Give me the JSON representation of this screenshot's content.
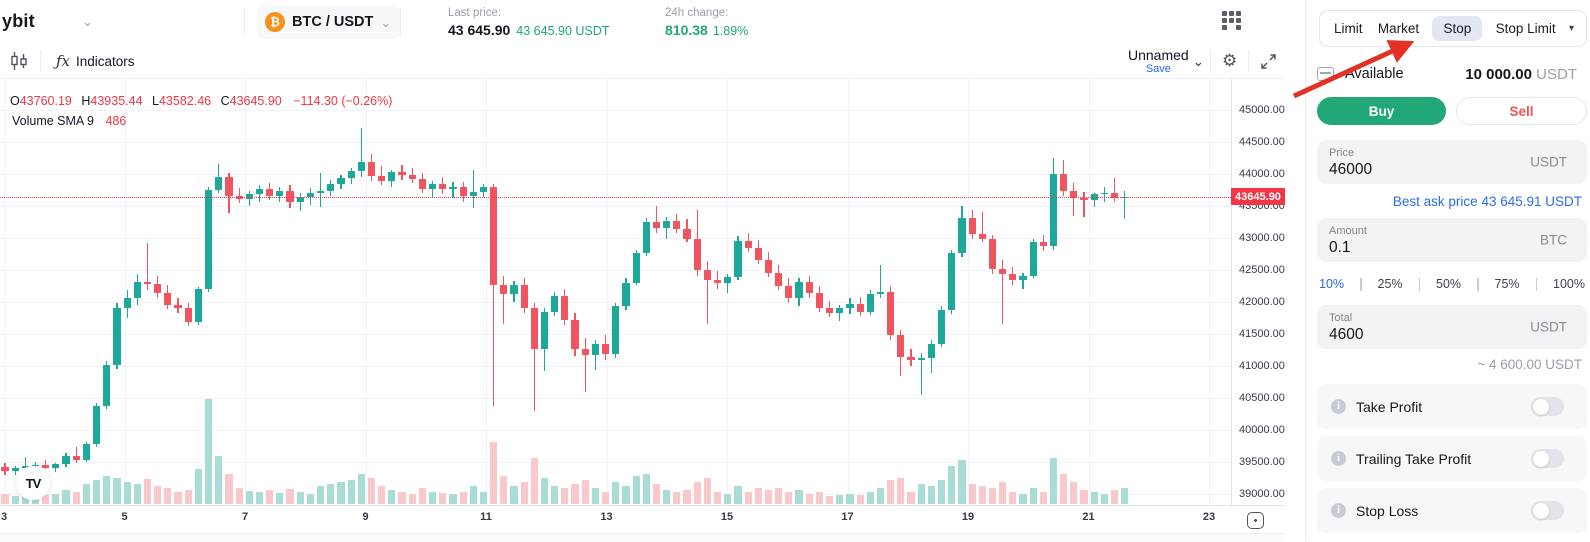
{
  "colors": {
    "candle_up": "#1CA99A",
    "candle_down": "#F0545E",
    "vol_up": "#A8DCD5",
    "vol_down": "#F8C8CB",
    "accent_red": "#F23645",
    "buy_green": "#21A876",
    "sell_red": "#EF5454",
    "link_blue": "#2D6BE4",
    "brand_orange": "#F7931A",
    "arrow_red": "#E43025"
  },
  "icons": {
    "btc": "₿",
    "chevron_down": "⌄",
    "caret_down": "▾",
    "gear": "⚙",
    "fx": "ƒx",
    "info": "i",
    "tv": "TV"
  },
  "top_bar": {
    "logo_text": "ybit",
    "pair": "BTC / USDT",
    "last_price_label": "Last price:",
    "last_price": "43 645.90",
    "last_price_usdt": "43 645.90 USDT",
    "change_label": "24h change:",
    "change_value": "810.38",
    "change_pct": "1.89%"
  },
  "chart": {
    "toolbar": {
      "indicators": "Indicators",
      "layout_name": "Unnamed",
      "save": "Save"
    },
    "legend": {
      "o_key": "O",
      "o_val": "43760.19",
      "h_key": "H",
      "h_val": "43935.44",
      "l_key": "L",
      "l_val": "43582.46",
      "c_key": "C",
      "c_val": "43645.90",
      "chg": "−114.30 (−0.26%)"
    },
    "volume_legend": {
      "label": "Volume SMA 9",
      "value": "486"
    },
    "price_tag": "43645.90",
    "y_ticks": [
      "45000.00",
      "44500.00",
      "44000.00",
      "43500.00",
      "43000.00",
      "42500.00",
      "42000.00",
      "41500.00",
      "41000.00",
      "40500.00",
      "40000.00",
      "39500.00",
      "39000.00"
    ],
    "x_ticks": [
      "3",
      "5",
      "7",
      "9",
      "11",
      "13",
      "15",
      "17",
      "19",
      "21",
      "23"
    ],
    "chart_data": {
      "type": "candlestick",
      "symbol": "BTC/USDT",
      "last_price": 43645.9,
      "y_range": [
        39000,
        45000
      ],
      "price_step": 500,
      "x_tick_days": [
        3,
        5,
        7,
        9,
        11,
        13,
        15,
        17,
        19,
        21,
        23
      ],
      "candle_format": [
        "open",
        "high",
        "low",
        "close",
        "volume_px"
      ],
      "candles": [
        [
          39420,
          39490,
          39300,
          39360,
          10
        ],
        [
          39360,
          39440,
          39300,
          39410,
          8
        ],
        [
          39410,
          39580,
          39340,
          39430,
          9
        ],
        [
          39430,
          39500,
          39360,
          39460,
          8
        ],
        [
          39460,
          39530,
          39390,
          39410,
          9
        ],
        [
          39410,
          39490,
          39340,
          39470,
          10
        ],
        [
          39470,
          39640,
          39420,
          39600,
          14
        ],
        [
          39600,
          39730,
          39480,
          39530,
          12
        ],
        [
          39530,
          39810,
          39500,
          39780,
          20
        ],
        [
          39780,
          40420,
          39740,
          40380,
          24
        ],
        [
          40380,
          41080,
          40330,
          41020,
          28
        ],
        [
          41020,
          41980,
          40960,
          41900,
          26
        ],
        [
          41900,
          42180,
          41750,
          42060,
          22
        ],
        [
          42060,
          42440,
          41950,
          42310,
          20
        ],
        [
          42310,
          42920,
          42180,
          42280,
          25
        ],
        [
          42280,
          42400,
          42060,
          42140,
          18
        ],
        [
          42140,
          42260,
          41890,
          41950,
          16
        ],
        [
          41950,
          42060,
          41830,
          41900,
          12
        ],
        [
          41900,
          41990,
          41630,
          41680,
          14
        ],
        [
          41680,
          42240,
          41640,
          42210,
          35
        ],
        [
          42210,
          43790,
          42160,
          43750,
          105
        ],
        [
          43750,
          44160,
          43700,
          43950,
          48
        ],
        [
          43950,
          44010,
          43390,
          43660,
          30
        ],
        [
          43660,
          43780,
          43540,
          43610,
          16
        ],
        [
          43610,
          43730,
          43500,
          43690,
          13
        ],
        [
          43690,
          43830,
          43570,
          43760,
          12
        ],
        [
          43760,
          43860,
          43600,
          43660,
          14
        ],
        [
          43660,
          43800,
          43560,
          43730,
          11
        ],
        [
          43730,
          43830,
          43470,
          43560,
          15
        ],
        [
          43560,
          43700,
          43420,
          43640,
          12
        ],
        [
          43640,
          43780,
          43520,
          43700,
          10
        ],
        [
          43700,
          44010,
          43490,
          43740,
          18
        ],
        [
          43740,
          43900,
          43650,
          43850,
          20
        ],
        [
          43850,
          43990,
          43760,
          43940,
          22
        ],
        [
          43940,
          44100,
          43850,
          44050,
          24
        ],
        [
          44050,
          44720,
          43950,
          44190,
          30
        ],
        [
          44190,
          44310,
          43890,
          43970,
          26
        ],
        [
          43970,
          44120,
          43830,
          43890,
          18
        ],
        [
          43890,
          44060,
          43800,
          44030,
          14
        ],
        [
          44030,
          44140,
          43910,
          43980,
          12
        ],
        [
          43980,
          44090,
          43860,
          43920,
          10
        ],
        [
          43920,
          44010,
          43700,
          43770,
          16
        ],
        [
          43770,
          43890,
          43640,
          43850,
          12
        ],
        [
          43850,
          43950,
          43690,
          43760,
          11
        ],
        [
          43760,
          43870,
          43620,
          43790,
          10
        ],
        [
          43790,
          43880,
          43560,
          43650,
          12
        ],
        [
          43650,
          44060,
          43470,
          43720,
          18
        ],
        [
          43720,
          43840,
          43640,
          43800,
          12
        ],
        [
          43800,
          43840,
          40380,
          42260,
          62
        ],
        [
          42260,
          42400,
          41660,
          42130,
          28
        ],
        [
          42130,
          42330,
          42000,
          42270,
          18
        ],
        [
          42270,
          42380,
          41830,
          41910,
          22
        ],
        [
          41910,
          41990,
          40300,
          41270,
          46
        ],
        [
          41270,
          41900,
          40920,
          41840,
          26
        ],
        [
          41840,
          42160,
          41780,
          42090,
          18
        ],
        [
          42090,
          42200,
          41640,
          41720,
          16
        ],
        [
          41720,
          41830,
          41160,
          41260,
          20
        ],
        [
          41260,
          41430,
          40590,
          41170,
          24
        ],
        [
          41170,
          41400,
          40940,
          41340,
          16
        ],
        [
          41340,
          41490,
          41100,
          41180,
          12
        ],
        [
          41180,
          41990,
          41130,
          41930,
          22
        ],
        [
          41930,
          42380,
          41880,
          42300,
          18
        ],
        [
          42300,
          42820,
          42260,
          42760,
          28
        ],
        [
          42760,
          43310,
          42720,
          43250,
          30
        ],
        [
          43250,
          43500,
          43080,
          43160,
          20
        ],
        [
          43160,
          43330,
          42990,
          43260,
          14
        ],
        [
          43260,
          43380,
          43080,
          43140,
          12
        ],
        [
          43140,
          43290,
          42930,
          42990,
          14
        ],
        [
          42990,
          43440,
          42400,
          42500,
          22
        ],
        [
          42500,
          42640,
          41650,
          42350,
          26
        ],
        [
          42350,
          42480,
          42200,
          42300,
          12
        ],
        [
          42300,
          42440,
          42140,
          42390,
          10
        ],
        [
          42390,
          43030,
          42340,
          42950,
          18
        ],
        [
          42950,
          43080,
          42780,
          42850,
          12
        ],
        [
          42850,
          42970,
          42590,
          42660,
          16
        ],
        [
          42660,
          42780,
          42390,
          42460,
          14
        ],
        [
          42460,
          42580,
          42180,
          42250,
          16
        ],
        [
          42250,
          42380,
          41990,
          42060,
          12
        ],
        [
          42060,
          42380,
          41940,
          42310,
          14
        ],
        [
          42310,
          42400,
          42070,
          42140,
          10
        ],
        [
          42140,
          42250,
          41840,
          41910,
          12
        ],
        [
          41910,
          42020,
          41760,
          41830,
          8
        ],
        [
          41830,
          41950,
          41700,
          41900,
          9
        ],
        [
          41900,
          42060,
          41820,
          41970,
          10
        ],
        [
          41970,
          42080,
          41780,
          41850,
          9
        ],
        [
          41850,
          42180,
          41800,
          42120,
          12
        ],
        [
          42120,
          42580,
          42060,
          42150,
          16
        ],
        [
          42150,
          42250,
          41400,
          41480,
          24
        ],
        [
          41480,
          41560,
          40850,
          41140,
          26
        ],
        [
          41140,
          41260,
          41000,
          41100,
          12
        ],
        [
          41100,
          41210,
          40540,
          41130,
          20
        ],
        [
          41130,
          41400,
          40890,
          41340,
          18
        ],
        [
          41340,
          41930,
          41290,
          41870,
          24
        ],
        [
          41870,
          42820,
          41810,
          42770,
          38
        ],
        [
          42770,
          43500,
          42710,
          43320,
          44
        ],
        [
          43320,
          43430,
          42990,
          43070,
          20
        ],
        [
          43070,
          43410,
          42930,
          42980,
          18
        ],
        [
          42980,
          43040,
          42430,
          42520,
          16
        ],
        [
          42520,
          42650,
          41660,
          42430,
          22
        ],
        [
          42430,
          42540,
          42260,
          42340,
          12
        ],
        [
          42340,
          42460,
          42210,
          42410,
          10
        ],
        [
          42410,
          42990,
          42370,
          42940,
          16
        ],
        [
          42940,
          43040,
          42790,
          42870,
          12
        ],
        [
          42870,
          44250,
          42820,
          44000,
          46
        ],
        [
          44000,
          44220,
          43660,
          43740,
          30
        ],
        [
          43740,
          43860,
          43350,
          43630,
          22
        ],
        [
          43630,
          43720,
          43330,
          43600,
          14
        ],
        [
          43600,
          43710,
          43490,
          43680,
          12
        ],
        [
          43680,
          43790,
          43560,
          43700,
          10
        ],
        [
          43700,
          43930,
          43570,
          43620,
          14
        ],
        [
          43620,
          43740,
          43290,
          43646,
          16
        ]
      ]
    }
  },
  "panel": {
    "tabs": [
      "Limit",
      "Market",
      "Stop",
      "Stop Limit"
    ],
    "selected_tab": "Stop",
    "available_label": "Available",
    "available_value": "10 000.00",
    "available_unit": " USDT",
    "buy_label": "Buy",
    "sell_label": "Sell",
    "price_field": {
      "label": "Price",
      "value": "46000",
      "unit": "USDT"
    },
    "best_ask": "Best ask price 43 645.91 USDT",
    "amount_field": {
      "label": "Amount",
      "value": "0.1",
      "unit": "BTC"
    },
    "percents": [
      "10%",
      "25%",
      "50%",
      "75%",
      "100%"
    ],
    "total_field": {
      "label": "Total",
      "value": "4600",
      "unit": "USDT"
    },
    "total_approx": "~ 4 600.00 USDT",
    "toggles": [
      {
        "label": "Take Profit",
        "on": false
      },
      {
        "label": "Trailing Take Profit",
        "on": false
      },
      {
        "label": "Stop Loss",
        "on": false
      }
    ]
  }
}
